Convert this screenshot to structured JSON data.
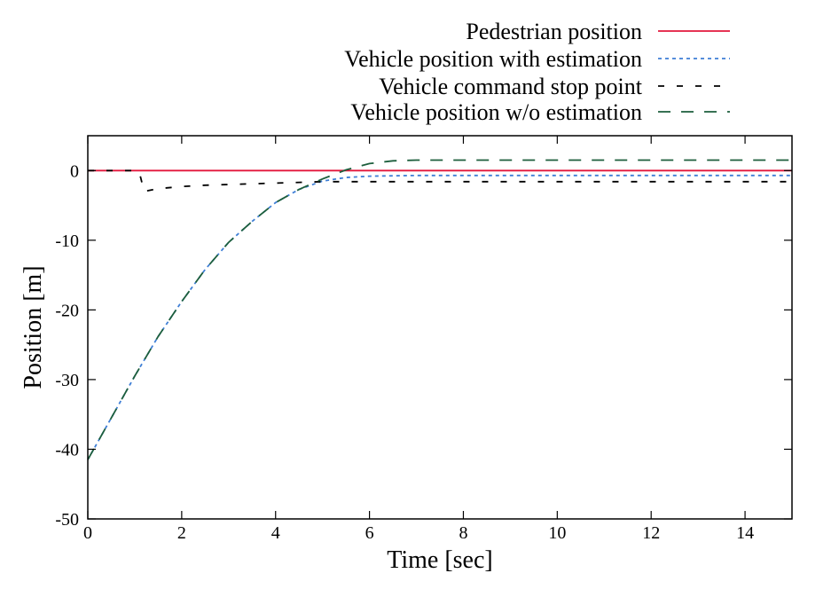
{
  "chart_data": {
    "type": "line",
    "title": "",
    "xlabel": "Time [sec]",
    "ylabel": "Position [m]",
    "xlim": [
      0,
      15
    ],
    "ylim": [
      -50,
      5
    ],
    "xticks": [
      0,
      2,
      4,
      6,
      8,
      10,
      12,
      14
    ],
    "yticks": [
      0,
      -10,
      -20,
      -30,
      -40,
      -50
    ],
    "grid": false,
    "legend_position": "top-right, outside plot area",
    "series": [
      {
        "name": "Pedestrian position",
        "color": "#e3173c",
        "style": "solid",
        "x": [
          0,
          15
        ],
        "y": [
          0,
          0
        ]
      },
      {
        "name": "Vehicle position with estimation",
        "color": "#3f7fd6",
        "style": "dotted",
        "x": [
          0,
          0.5,
          1,
          1.5,
          2,
          2.5,
          3,
          3.5,
          4,
          4.5,
          5,
          5.5,
          6,
          7,
          8,
          10,
          12,
          15
        ],
        "y": [
          -41.5,
          -35.5,
          -29.5,
          -23.8,
          -18.8,
          -14.2,
          -10.3,
          -7.3,
          -4.6,
          -2.7,
          -1.5,
          -1.0,
          -0.8,
          -0.7,
          -0.7,
          -0.7,
          -0.7,
          -0.7
        ]
      },
      {
        "name": "Vehicle command stop point",
        "color": "#000000",
        "style": "dashed",
        "x": [
          0,
          0.6,
          1.0,
          1.1,
          1.2,
          1.5,
          2,
          2.5,
          3,
          3.5,
          4,
          4.5,
          5,
          5.5,
          6,
          8,
          10,
          12,
          15
        ],
        "y": [
          0,
          0,
          0,
          -0.3,
          -3.0,
          -2.6,
          -2.3,
          -2.1,
          -2.0,
          -1.9,
          -1.8,
          -1.7,
          -1.6,
          -1.6,
          -1.6,
          -1.6,
          -1.6,
          -1.6,
          -1.6
        ]
      },
      {
        "name": "Vehicle position w/o estimation",
        "color": "#1c5e3c",
        "style": "dashed",
        "x": [
          0,
          0.5,
          1,
          1.5,
          2,
          2.5,
          3,
          3.5,
          4,
          4.5,
          5,
          5.5,
          6,
          6.5,
          7,
          8,
          10,
          12,
          15
        ],
        "y": [
          -41.5,
          -35.5,
          -29.5,
          -23.8,
          -18.8,
          -14.2,
          -10.3,
          -7.3,
          -4.6,
          -2.7,
          -1.2,
          0.1,
          1.0,
          1.4,
          1.5,
          1.5,
          1.5,
          1.5,
          1.5
        ]
      }
    ]
  }
}
